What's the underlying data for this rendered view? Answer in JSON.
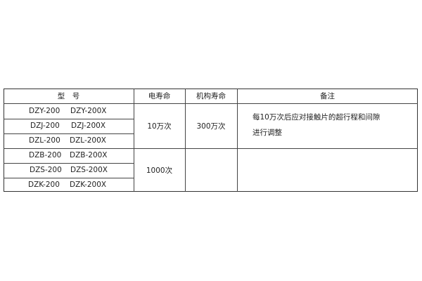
{
  "header": {
    "model": "型　号",
    "electrical_life": "电寿命",
    "mechanical_life": "机构寿命",
    "remarks": "备注"
  },
  "rows": [
    {
      "model_a": "DZY-200",
      "model_b": "DZY-200X"
    },
    {
      "model_a": "DZJ-200",
      "model_b": "DZJ-200X"
    },
    {
      "model_a": "DZL-200",
      "model_b": "DZL-200X"
    },
    {
      "model_a": "DZB-200",
      "model_b": "DZB-200X"
    },
    {
      "model_a": "DZS-200",
      "model_b": "DZS-200X"
    },
    {
      "model_a": "DZK-200",
      "model_b": "DZK-200X"
    }
  ],
  "group1": {
    "electrical_life": "10万次",
    "mechanical_life": "300万次",
    "remark_line1": "每10万次后应对接触片的超行程和间隙",
    "remark_line2": "进行调整"
  },
  "group2": {
    "electrical_life": "1000次",
    "mechanical_life": "",
    "remarks": ""
  }
}
